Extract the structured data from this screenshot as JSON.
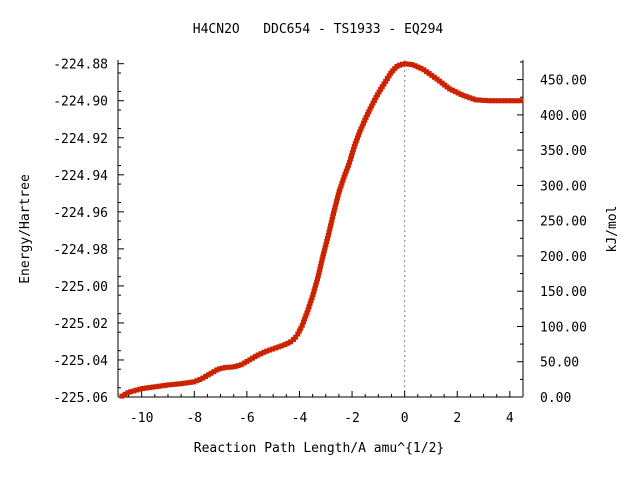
{
  "chart_data": {
    "type": "line",
    "title": "H4CN2O   DDC654 - TS1933 - EQ294",
    "xlabel": "Reaction Path Length/A amu^{1/2}",
    "ylabel": "Energy/Hartree",
    "y2label": "kJ/mol",
    "xlim": [
      -10.9,
      4.5
    ],
    "ylim": [
      -225.06,
      -224.878
    ],
    "y2lim": [
      0,
      477.8
    ],
    "x_ticks": [
      -10,
      -8,
      -6,
      -4,
      -2,
      0,
      2,
      4
    ],
    "x_tick_labels": [
      "-10",
      "-8",
      "-6",
      "-4",
      "-2",
      "0",
      "2",
      "4"
    ],
    "y_ticks": [
      -225.06,
      -225.04,
      -225.02,
      -225.0,
      -224.98,
      -224.96,
      -224.94,
      -224.92,
      -224.9,
      -224.88
    ],
    "y_tick_labels": [
      "-225.06",
      "-225.04",
      "-225.02",
      "-225.00",
      "-224.98",
      "-224.96",
      "-224.94",
      "-224.92",
      "-224.90",
      "-224.88"
    ],
    "y2_ticks": [
      0,
      50,
      100,
      150,
      200,
      250,
      300,
      350,
      400,
      450
    ],
    "y2_tick_labels": [
      "0.00",
      "50.00",
      "100.00",
      "150.00",
      "200.00",
      "250.00",
      "300.00",
      "350.00",
      "400.00",
      "450.00"
    ],
    "grid": false,
    "ts_marker_x": 0,
    "colors": {
      "line": "#00a000",
      "marker": "#cc2200",
      "zero_line": "#888888",
      "axis": "#000000"
    },
    "curve": {
      "x": [
        -10.75,
        -10.5,
        -10.0,
        -9.5,
        -9.0,
        -8.5,
        -8.0,
        -7.7,
        -7.4,
        -7.1,
        -6.8,
        -6.5,
        -6.2,
        -5.9,
        -5.6,
        -5.3,
        -5.0,
        -4.6,
        -4.3,
        -4.1,
        -3.9,
        -3.7,
        -3.5,
        -3.3,
        -3.1,
        -2.9,
        -2.7,
        -2.5,
        -2.3,
        -2.1,
        -1.9,
        -1.7,
        -1.5,
        -1.3,
        -1.1,
        -0.9,
        -0.7,
        -0.5,
        -0.3,
        -0.15,
        0.0,
        0.3,
        0.7,
        1.2,
        1.7,
        2.2,
        2.7,
        3.2,
        3.7,
        4.2,
        4.5
      ],
      "y": [
        -225.0595,
        -225.0575,
        -225.0555,
        -225.0545,
        -225.0535,
        -225.0528,
        -225.0518,
        -225.05,
        -225.0475,
        -225.045,
        -225.044,
        -225.0438,
        -225.0425,
        -225.04,
        -225.0375,
        -225.0355,
        -225.034,
        -225.032,
        -225.03,
        -225.027,
        -225.0215,
        -225.014,
        -225.0055,
        -224.9955,
        -224.9835,
        -224.9725,
        -224.9605,
        -224.9495,
        -224.941,
        -224.9335,
        -224.924,
        -224.9165,
        -224.91,
        -224.904,
        -224.8985,
        -224.8935,
        -224.889,
        -224.8845,
        -224.8815,
        -224.8805,
        -224.88,
        -224.8805,
        -224.883,
        -224.888,
        -224.8935,
        -224.897,
        -224.8995,
        -224.9,
        -224.9,
        -224.9,
        -224.9
      ]
    }
  }
}
